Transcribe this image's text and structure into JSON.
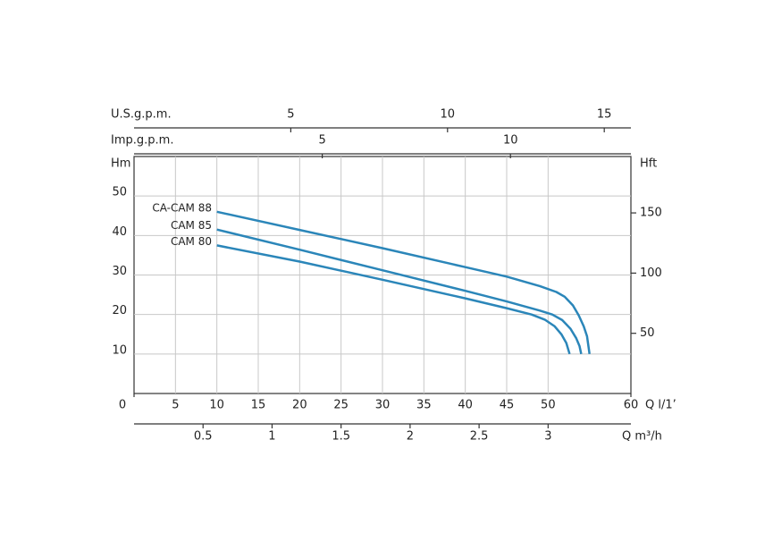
{
  "chart_data": {
    "type": "line",
    "y_label": "Hm",
    "y2_label": "Hft",
    "x_label": "Q  l/1’",
    "xlim": [
      0,
      60
    ],
    "xticks": [
      0,
      5,
      10,
      15,
      20,
      25,
      30,
      35,
      40,
      45,
      50,
      60
    ],
    "ylim": [
      0,
      60
    ],
    "yticks": [
      10,
      20,
      30,
      40,
      50
    ],
    "y2lim": [
      0,
      196.85
    ],
    "y2ticks": [
      50,
      100,
      150
    ],
    "grid": true,
    "extra_x_axes": [
      {
        "label": "Q  m³/h",
        "position": "bottom",
        "xlim": [
          0,
          3.6
        ],
        "xticks": [
          0.5,
          1,
          1.5,
          2,
          2.5,
          3
        ]
      },
      {
        "label": "U.S.g.p.m.",
        "position": "top",
        "xlim": [
          0,
          15.85
        ],
        "xticks": [
          5,
          10,
          15
        ]
      },
      {
        "label": "Imp.g.p.m.",
        "position": "top",
        "xlim": [
          0,
          13.2
        ],
        "xticks": [
          5,
          10
        ]
      }
    ],
    "series": [
      {
        "name": "CA-CAM 88",
        "color": "#2b86b9",
        "x": [
          10,
          20,
          30,
          40,
          45,
          49,
          51,
          52,
          53,
          53.7,
          54.3,
          54.7,
          55
        ],
        "values": [
          46,
          41.4,
          36.8,
          32,
          29.6,
          27.2,
          25.7,
          24.5,
          22.3,
          19.8,
          17,
          14.5,
          10
        ]
      },
      {
        "name": "CAM 85",
        "color": "#2b86b9",
        "x": [
          10,
          20,
          30,
          40,
          45,
          49,
          50.5,
          51.7,
          52.7,
          53.4,
          53.8,
          54
        ],
        "values": [
          41.5,
          36.4,
          31.2,
          26,
          23.3,
          21,
          20,
          18.6,
          16.4,
          14,
          12,
          10
        ]
      },
      {
        "name": "CAM 80",
        "color": "#2b86b9",
        "x": [
          10,
          20,
          30,
          40,
          45,
          48,
          49.6,
          50.8,
          51.6,
          52.2,
          52.6
        ],
        "values": [
          37.5,
          33.4,
          28.8,
          24.1,
          21.6,
          20,
          18.7,
          17,
          15,
          12.8,
          10
        ]
      }
    ]
  }
}
